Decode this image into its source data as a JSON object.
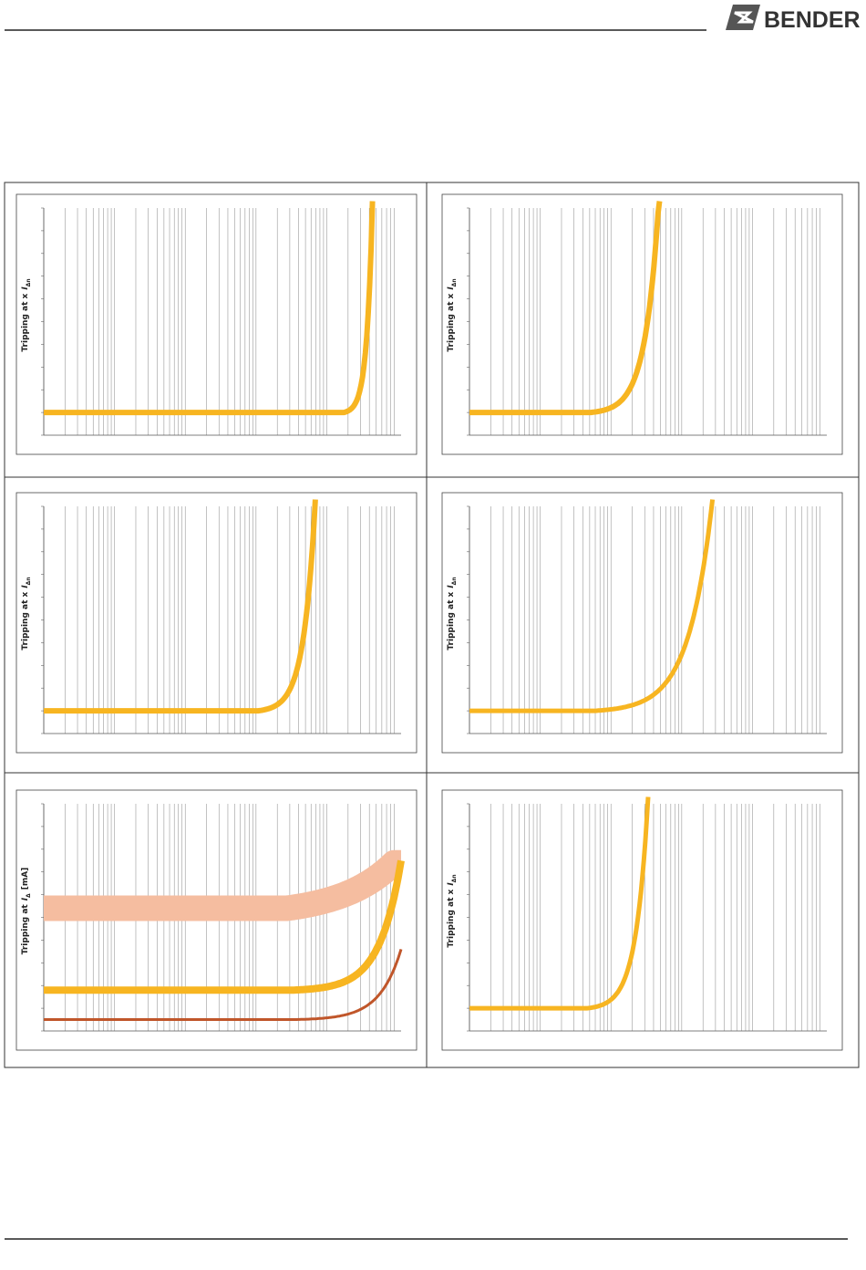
{
  "header": {
    "brand": "BENDER"
  },
  "panels": [
    {
      "y_label": {
        "text": "Tripping at x",
        "symbol": "I",
        "subscript": "Δn"
      }
    },
    {
      "y_label": {
        "text": "Tripping at x",
        "symbol": "I",
        "subscript": "Δn"
      }
    },
    {
      "y_label": {
        "text": "Tripping at x",
        "symbol": "I",
        "subscript": "Δn"
      }
    },
    {
      "y_label": {
        "text": "Tripping at x",
        "symbol": "I",
        "subscript": "Δn"
      }
    },
    {
      "y_label": {
        "text": "Tripping at",
        "symbol": "I",
        "subscript": "Δ",
        "unit": "[mA]"
      }
    },
    {
      "y_label": {
        "text": "Tripping at x",
        "symbol": "I",
        "subscript": "Δn"
      }
    }
  ]
}
